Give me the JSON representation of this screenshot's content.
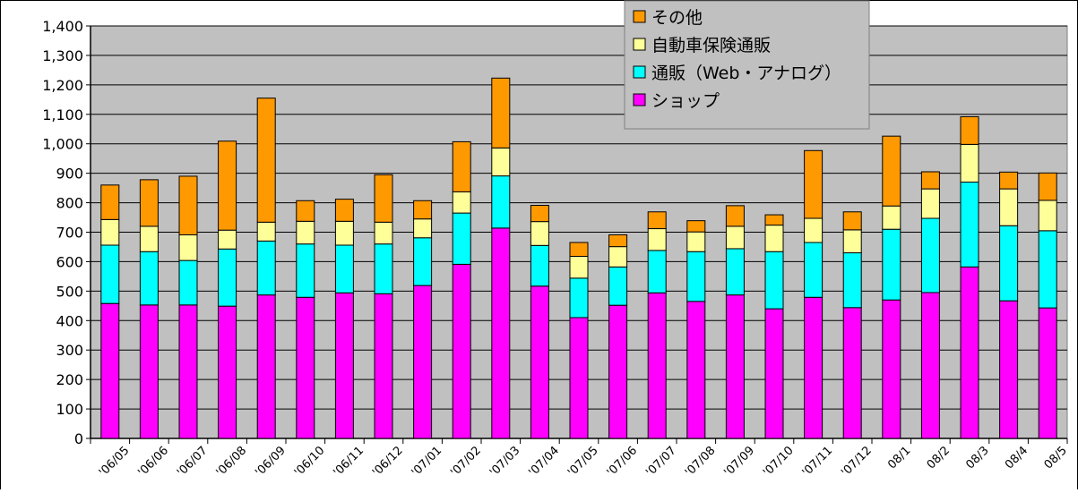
{
  "chart_data": {
    "type": "bar",
    "stacked": true,
    "categories": [
      "'06/05",
      "'06/06",
      "'06/07",
      "'06/08",
      "'06/09",
      "'06/10",
      "'06/11",
      "'06/12",
      "'07/01",
      "'07/02",
      "'07/03",
      "'07/04",
      "'07/05",
      "'07/06",
      "'07/07",
      "'07/08",
      "'07/09",
      "'07/10",
      "'07/11",
      "'07/12",
      "08/1",
      "08/2",
      "08/3",
      "08/4",
      "08/5"
    ],
    "series": [
      {
        "name": "ショップ",
        "color": "#ff00ff",
        "values": [
          458,
          453,
          453,
          449,
          487,
          479,
          494,
          491,
          519,
          591,
          714,
          517,
          410,
          452,
          494,
          465,
          487,
          440,
          479,
          444,
          470,
          495,
          582,
          467,
          443
        ]
      },
      {
        "name": "通販（Web・アナログ）",
        "color": "#00ffff",
        "values": [
          198,
          181,
          151,
          194,
          183,
          181,
          162,
          169,
          162,
          174,
          177,
          138,
          134,
          130,
          144,
          169,
          157,
          194,
          186,
          186,
          240,
          252,
          288,
          255,
          262
        ]
      },
      {
        "name": "自動車保険通販",
        "color": "#ffff99",
        "values": [
          87,
          86,
          87,
          64,
          64,
          77,
          81,
          74,
          64,
          72,
          95,
          81,
          74,
          69,
          74,
          67,
          76,
          90,
          82,
          78,
          79,
          100,
          128,
          125,
          103
        ]
      },
      {
        "name": "その他",
        "color": "#ff9900",
        "values": [
          117,
          158,
          199,
          302,
          421,
          70,
          75,
          161,
          62,
          170,
          237,
          55,
          47,
          40,
          57,
          38,
          70,
          35,
          230,
          61,
          237,
          58,
          94,
          57,
          93
        ]
      }
    ],
    "ylim": [
      0,
      1400
    ],
    "y_ticks": [
      "0",
      "100",
      "200",
      "300",
      "400",
      "500",
      "600",
      "700",
      "800",
      "900",
      "1,000",
      "1,100",
      "1,200",
      "1,300",
      "1,400"
    ],
    "grid": true,
    "legend_position": "top-center",
    "legend_order": [
      "その他",
      "自動車保険通販",
      "通販（Web・アナログ）",
      "ショップ"
    ],
    "plot_background": "#c0c0c0"
  }
}
